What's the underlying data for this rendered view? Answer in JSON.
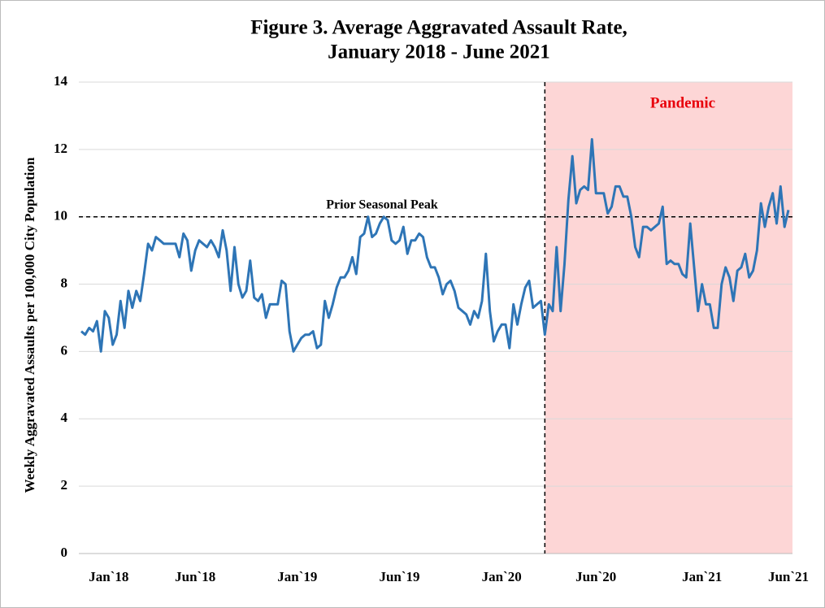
{
  "chart_data": {
    "type": "line",
    "title": "Figure 3. Average Aggravated Assault Rate,",
    "subtitle": "January 2018 - June 2021",
    "y_label": "Weekly Aggravated Assaults per 100,000 City Population",
    "ylim": [
      0,
      14
    ],
    "yticks": [
      0,
      2,
      4,
      6,
      8,
      10,
      12,
      14
    ],
    "grid": true,
    "categories": [
      null,
      null,
      null,
      null,
      null,
      null,
      null,
      "Jan`18",
      null,
      null,
      null,
      null,
      null,
      null,
      null,
      null,
      null,
      null,
      null,
      null,
      null,
      null,
      null,
      null,
      null,
      null,
      null,
      null,
      null,
      "Jun`18",
      null,
      null,
      null,
      null,
      null,
      null,
      null,
      null,
      null,
      null,
      null,
      null,
      null,
      null,
      null,
      null,
      null,
      null,
      null,
      null,
      null,
      null,
      null,
      null,
      null,
      "Jan`19",
      null,
      null,
      null,
      null,
      null,
      null,
      null,
      null,
      null,
      null,
      null,
      null,
      null,
      null,
      null,
      null,
      null,
      null,
      null,
      null,
      null,
      null,
      null,
      null,
      null,
      "Jun`19",
      null,
      null,
      null,
      null,
      null,
      null,
      null,
      null,
      null,
      null,
      null,
      null,
      null,
      null,
      null,
      null,
      null,
      null,
      null,
      null,
      null,
      null,
      null,
      null,
      null,
      "Jan`20",
      null,
      null,
      null,
      null,
      null,
      null,
      null,
      null,
      null,
      null,
      null,
      null,
      null,
      null,
      null,
      null,
      null,
      null,
      null,
      null,
      null,
      null,
      null,
      "Jun`20",
      null,
      null,
      null,
      null,
      null,
      null,
      null,
      null,
      null,
      null,
      null,
      null,
      null,
      null,
      null,
      null,
      null,
      null,
      null,
      null,
      null,
      null,
      null,
      null,
      null,
      null,
      "Jan`21",
      null,
      null,
      null,
      null,
      null,
      null,
      null,
      null,
      null,
      null,
      null,
      null,
      null,
      null,
      null,
      null,
      null,
      null,
      null,
      null,
      null,
      "Jun`21"
    ],
    "series": [
      {
        "color": "#2e75b6",
        "values": [
          6.6,
          6.5,
          6.7,
          6.6,
          6.9,
          6.0,
          7.2,
          7.0,
          6.2,
          6.5,
          7.5,
          6.7,
          7.8,
          7.3,
          7.8,
          7.5,
          8.3,
          9.2,
          9.0,
          9.4,
          9.3,
          9.2,
          9.2,
          9.2,
          9.2,
          8.8,
          9.5,
          9.3,
          8.4,
          9.0,
          9.3,
          9.2,
          9.1,
          9.3,
          9.1,
          8.8,
          9.6,
          9.0,
          7.8,
          9.1,
          8.0,
          7.6,
          7.8,
          8.7,
          7.6,
          7.5,
          7.7,
          7.0,
          7.4,
          7.4,
          7.4,
          8.1,
          8.0,
          6.6,
          6.0,
          6.2,
          6.4,
          6.5,
          6.5,
          6.6,
          6.1,
          6.2,
          7.5,
          7.0,
          7.4,
          7.9,
          8.2,
          8.2,
          8.4,
          8.8,
          8.3,
          9.4,
          9.5,
          10.0,
          9.4,
          9.5,
          9.8,
          10.0,
          9.9,
          9.3,
          9.2,
          9.3,
          9.7,
          8.9,
          9.3,
          9.3,
          9.5,
          9.4,
          8.8,
          8.5,
          8.5,
          8.2,
          7.7,
          8.0,
          8.1,
          7.8,
          7.3,
          7.2,
          7.1,
          6.8,
          7.2,
          7.0,
          7.5,
          8.9,
          7.2,
          6.3,
          6.6,
          6.8,
          6.8,
          6.1,
          7.4,
          6.8,
          7.4,
          7.9,
          8.1,
          7.3,
          7.4,
          7.5,
          6.5,
          7.4,
          7.2,
          9.1,
          7.2,
          8.6,
          10.5,
          11.8,
          10.4,
          10.8,
          10.9,
          10.8,
          12.3,
          10.7,
          10.7,
          10.7,
          10.1,
          10.3,
          10.9,
          10.9,
          10.6,
          10.6,
          10.0,
          9.1,
          8.8,
          9.7,
          9.7,
          9.6,
          9.7,
          9.8,
          10.3,
          8.6,
          8.7,
          8.6,
          8.6,
          8.3,
          8.2,
          9.8,
          8.5,
          7.2,
          8.0,
          7.4,
          7.4,
          6.7,
          6.7,
          8.0,
          8.5,
          8.2,
          7.5,
          8.4,
          8.5,
          8.9,
          8.2,
          8.4,
          9.0,
          10.4,
          9.7,
          10.3,
          10.7,
          9.8,
          10.9,
          9.7,
          10.2
        ]
      }
    ],
    "reference_line": {
      "value": 10,
      "label": "Prior Seasonal Peak"
    },
    "shaded_region": {
      "from_category": 118,
      "label": "Pandemic",
      "color": "#fdd6d6",
      "label_color": "#e8000b"
    }
  }
}
